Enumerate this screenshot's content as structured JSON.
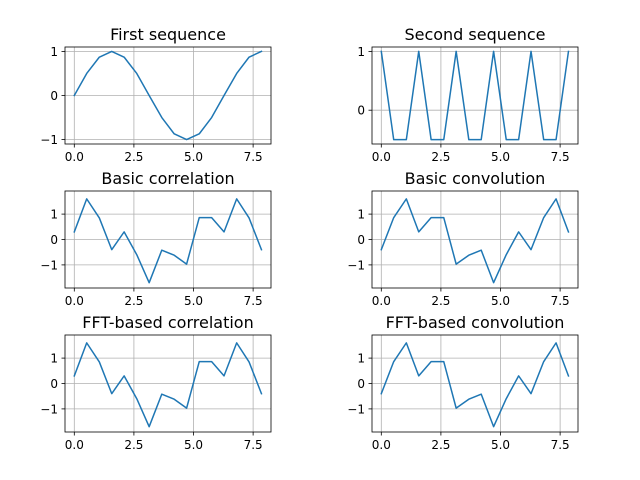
{
  "figure": {
    "background": "#ffffff",
    "line_color": "#1f77b4",
    "grid_color": "#b0b0b0"
  },
  "chart_data": [
    {
      "type": "line",
      "title": "First sequence",
      "xlabel": "",
      "ylabel": "",
      "grid": true,
      "xlim": [
        -0.39,
        8.25
      ],
      "ylim": [
        -1.1,
        1.1
      ],
      "xticks": [
        0.0,
        2.5,
        5.0,
        7.5
      ],
      "xtick_labels": [
        "0.0",
        "2.5",
        "5.0",
        "7.5"
      ],
      "yticks": [
        -1,
        0,
        1
      ],
      "ytick_labels": [
        "−1",
        "0",
        "1"
      ],
      "series": [
        {
          "x": [
            0,
            0.52,
            1.05,
            1.57,
            2.09,
            2.62,
            3.14,
            3.67,
            4.19,
            4.71,
            5.24,
            5.76,
            6.28,
            6.81,
            7.33,
            7.85
          ],
          "y": [
            0,
            0.5,
            0.87,
            1,
            0.87,
            0.5,
            0,
            -0.5,
            -0.87,
            -1,
            -0.87,
            -0.5,
            0,
            0.5,
            0.87,
            1
          ]
        }
      ]
    },
    {
      "type": "line",
      "title": "Second sequence",
      "xlabel": "",
      "ylabel": "",
      "grid": true,
      "xlim": [
        -0.39,
        8.25
      ],
      "ylim": [
        -0.575,
        1.075
      ],
      "xticks": [
        0.0,
        2.5,
        5.0,
        7.5
      ],
      "xtick_labels": [
        "0.0",
        "2.5",
        "5.0",
        "7.5"
      ],
      "yticks": [
        0,
        1
      ],
      "ytick_labels": [
        "0",
        "1"
      ],
      "series": [
        {
          "x": [
            0,
            0.52,
            1.05,
            1.57,
            2.09,
            2.62,
            3.14,
            3.67,
            4.19,
            4.71,
            5.24,
            5.76,
            6.28,
            6.81,
            7.33,
            7.85
          ],
          "y": [
            1,
            -0.5,
            -0.5,
            1,
            -0.5,
            -0.5,
            1,
            -0.5,
            -0.5,
            1,
            -0.5,
            -0.5,
            1,
            -0.5,
            -0.5,
            1
          ]
        }
      ]
    },
    {
      "type": "line",
      "title": "Basic correlation",
      "xlabel": "",
      "ylabel": "",
      "grid": true,
      "xlim": [
        -0.39,
        8.25
      ],
      "ylim": [
        -1.91,
        1.91
      ],
      "xticks": [
        0.0,
        2.5,
        5.0,
        7.5
      ],
      "xtick_labels": [
        "0.0",
        "2.5",
        "5.0",
        "7.5"
      ],
      "yticks": [
        -1,
        0,
        1
      ],
      "ytick_labels": [
        "−1",
        "0",
        "1"
      ],
      "series": [
        {
          "x": [
            0,
            0.52,
            1.05,
            1.57,
            2.09,
            2.62,
            3.14,
            3.67,
            4.19,
            4.71,
            5.24,
            5.76,
            6.28,
            6.81,
            7.33,
            7.85
          ],
          "y": [
            0.3,
            1.6,
            0.85,
            -0.4,
            0.3,
            -0.6,
            -1.7,
            -0.42,
            -0.62,
            -0.97,
            0.86,
            0.86,
            0.3,
            1.6,
            0.85,
            -0.4
          ]
        }
      ]
    },
    {
      "type": "line",
      "title": "Basic convolution",
      "xlabel": "",
      "ylabel": "",
      "grid": true,
      "xlim": [
        -0.39,
        8.25
      ],
      "ylim": [
        -1.91,
        1.91
      ],
      "xticks": [
        0.0,
        2.5,
        5.0,
        7.5
      ],
      "xtick_labels": [
        "0.0",
        "2.5",
        "5.0",
        "7.5"
      ],
      "yticks": [
        -1,
        0,
        1
      ],
      "ytick_labels": [
        "−1",
        "0",
        "1"
      ],
      "series": [
        {
          "x": [
            0,
            0.52,
            1.05,
            1.57,
            2.09,
            2.62,
            3.14,
            3.67,
            4.19,
            4.71,
            5.24,
            5.76,
            6.28,
            6.81,
            7.33,
            7.85
          ],
          "y": [
            -0.4,
            0.86,
            1.6,
            0.3,
            0.86,
            0.86,
            -0.97,
            -0.62,
            -0.42,
            -1.7,
            -0.6,
            0.3,
            -0.4,
            0.86,
            1.6,
            0.3
          ]
        }
      ]
    },
    {
      "type": "line",
      "title": "FFT-based correlation",
      "xlabel": "",
      "ylabel": "",
      "grid": true,
      "xlim": [
        -0.39,
        8.25
      ],
      "ylim": [
        -1.91,
        1.91
      ],
      "xticks": [
        0.0,
        2.5,
        5.0,
        7.5
      ],
      "xtick_labels": [
        "0.0",
        "2.5",
        "5.0",
        "7.5"
      ],
      "yticks": [
        -1,
        0,
        1
      ],
      "ytick_labels": [
        "−1",
        "0",
        "1"
      ],
      "series": [
        {
          "x": [
            0,
            0.52,
            1.05,
            1.57,
            2.09,
            2.62,
            3.14,
            3.67,
            4.19,
            4.71,
            5.24,
            5.76,
            6.28,
            6.81,
            7.33,
            7.85
          ],
          "y": [
            0.3,
            1.6,
            0.85,
            -0.4,
            0.3,
            -0.6,
            -1.7,
            -0.42,
            -0.62,
            -0.97,
            0.86,
            0.86,
            0.3,
            1.6,
            0.85,
            -0.4
          ]
        }
      ]
    },
    {
      "type": "line",
      "title": "FFT-based convolution",
      "xlabel": "",
      "ylabel": "",
      "grid": true,
      "xlim": [
        -0.39,
        8.25
      ],
      "ylim": [
        -1.91,
        1.91
      ],
      "xticks": [
        0.0,
        2.5,
        5.0,
        7.5
      ],
      "xtick_labels": [
        "0.0",
        "2.5",
        "5.0",
        "7.5"
      ],
      "yticks": [
        -1,
        0,
        1
      ],
      "ytick_labels": [
        "−1",
        "0",
        "1"
      ],
      "series": [
        {
          "x": [
            0,
            0.52,
            1.05,
            1.57,
            2.09,
            2.62,
            3.14,
            3.67,
            4.19,
            4.71,
            5.24,
            5.76,
            6.28,
            6.81,
            7.33,
            7.85
          ],
          "y": [
            -0.4,
            0.86,
            1.6,
            0.3,
            0.86,
            0.86,
            -0.97,
            -0.62,
            -0.42,
            -1.7,
            -0.6,
            0.3,
            -0.4,
            0.86,
            1.6,
            0.3
          ]
        }
      ]
    }
  ]
}
